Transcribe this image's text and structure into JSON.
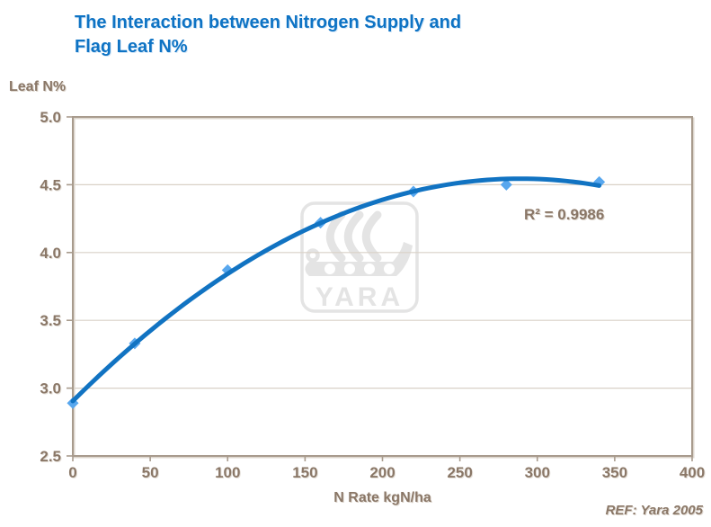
{
  "title": {
    "line1": "The Interaction between Nitrogen Supply and",
    "line2": "Flag Leaf N%"
  },
  "chart_data": {
    "type": "scatter",
    "title": "The Interaction between Nitrogen Supply and Flag Leaf N%",
    "xlabel": "N Rate kgN/ha",
    "ylabel": "Leaf N%",
    "x": [
      0,
      40,
      100,
      160,
      220,
      280,
      340
    ],
    "y": [
      2.89,
      3.33,
      3.87,
      4.22,
      4.45,
      4.5,
      4.52
    ],
    "trendline": {
      "type": "quadratic",
      "r_squared": 0.9986
    },
    "xlim": [
      0,
      400
    ],
    "ylim": [
      2.5,
      5.0
    ],
    "xticks": [
      0,
      50,
      100,
      150,
      200,
      250,
      300,
      350,
      400
    ],
    "xtick_labels": [
      "0",
      "50",
      "100",
      "150",
      "200",
      "250",
      "300",
      "350",
      "400"
    ],
    "yticks": [
      5.0,
      4.5,
      4.0,
      3.5,
      3.0,
      2.5
    ],
    "ytick_labels": [
      "5.0",
      "4.5",
      "4.0",
      "3.5",
      "3.0",
      "2.5"
    ],
    "grid": "horizontal",
    "legend": "none"
  },
  "annotations": {
    "r_squared_label": "R² = 0.9986",
    "reference": "REF: Yara 2005"
  },
  "watermark": {
    "text": "YARA"
  },
  "colors": {
    "title": "#0E73C4",
    "axis_text": "#8A7767",
    "frame": "#A89B8D",
    "frame_shadow": "#DCD5CC",
    "gridline": "#D9D1C7",
    "curve": "#1173C2",
    "marker": "#58A7EE",
    "watermark": "#E4E4E4"
  }
}
